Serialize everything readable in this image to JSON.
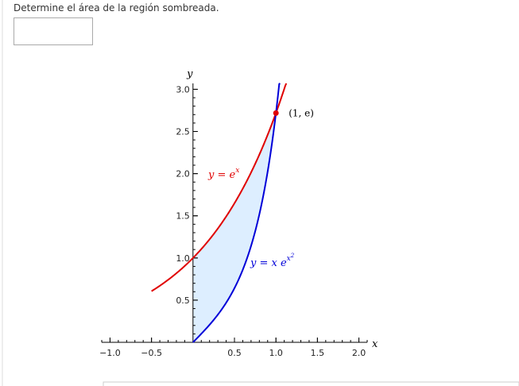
{
  "prompt": "Determine el área de la región sombreada.",
  "plot": {
    "xlabel": "x",
    "ylabel": "y",
    "xlim": [
      -1.1,
      2.1
    ],
    "ylim": [
      0,
      3.07
    ],
    "xticks": [
      {
        "value": -1,
        "label": "−1.0"
      },
      {
        "value": -0.5,
        "label": "−0.5"
      },
      {
        "value": 0.5,
        "label": "0.5"
      },
      {
        "value": 1,
        "label": "1.0"
      },
      {
        "value": 1.5,
        "label": "1.5"
      },
      {
        "value": 2,
        "label": "2.0"
      }
    ],
    "yticks": [
      {
        "value": 0.5,
        "label": "0.5"
      },
      {
        "value": 1,
        "label": "1.0"
      },
      {
        "value": 1.5,
        "label": "1.5"
      },
      {
        "value": 2,
        "label": "2.0"
      },
      {
        "value": 2.5,
        "label": "2.5"
      },
      {
        "value": 3,
        "label": "3.0"
      }
    ],
    "curves": [
      {
        "label": "y = e",
        "sup": "x",
        "color": "#e00000",
        "xmin": -0.5
      },
      {
        "label": "y = x e",
        "sup": "x",
        "supsup": "2",
        "color": "#0000d8",
        "xmin": 0
      }
    ],
    "point": {
      "x": 1,
      "y": 2.718,
      "label": "(1, e)",
      "color": "#e00000"
    },
    "shade": "#ddeeff"
  }
}
